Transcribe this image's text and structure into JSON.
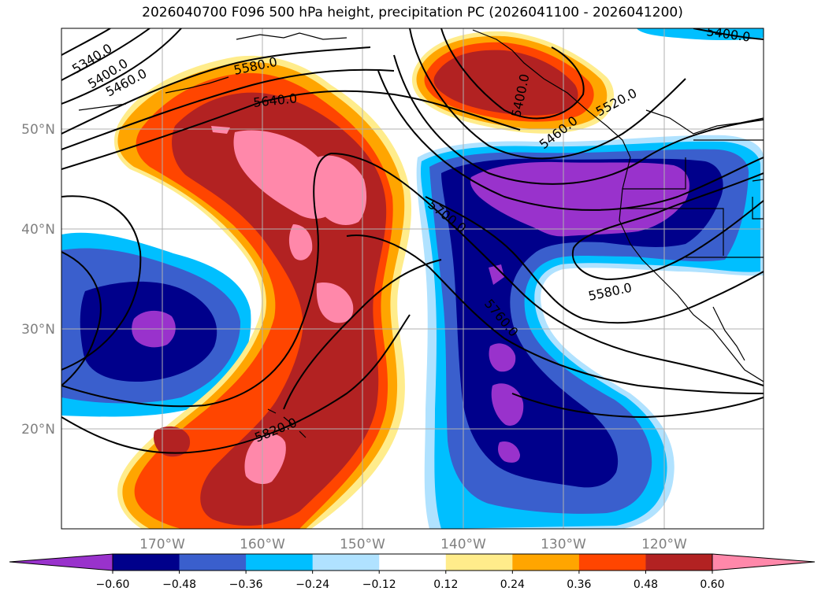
{
  "title": "2026040700 F096 500 hPa height, precipitation PC (2026041100 - 2026041200)",
  "map": {
    "lat_labels": [
      "50°N",
      "40°N",
      "30°N",
      "20°N"
    ],
    "lon_labels": [
      "170°W",
      "160°W",
      "150°W",
      "140°W",
      "130°W",
      "120°W"
    ],
    "contour_labels": [
      "5340.0",
      "5400.0",
      "5460.0",
      "5580.0",
      "5640.0",
      "5400.0",
      "5460.0",
      "5520.0",
      "5400.0",
      "5700.0",
      "5580.0",
      "5760.0",
      "5820.0"
    ]
  },
  "colorbar": {
    "colors": [
      "#9932cc",
      "#00008b",
      "#3a5fcd",
      "#00bfff",
      "#b0e2ff",
      "#ffffff",
      "#ffec8b",
      "#ffa500",
      "#ff4500",
      "#b22222",
      "#ff88aa"
    ],
    "tick_labels": [
      "−0.60",
      "−0.48",
      "−0.36",
      "−0.24",
      "−0.12",
      "0.12",
      "0.24",
      "0.36",
      "0.48",
      "0.60"
    ]
  }
}
